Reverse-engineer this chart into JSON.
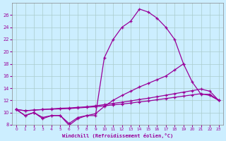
{
  "xlabel": "Windchill (Refroidissement éolien,°C)",
  "x": [
    0,
    1,
    2,
    3,
    4,
    5,
    6,
    7,
    8,
    9,
    10,
    11,
    12,
    13,
    14,
    15,
    16,
    17,
    18,
    19,
    20,
    21,
    22,
    23
  ],
  "line1_y": [
    10.5,
    9.5,
    10.0,
    9.0,
    9.5,
    9.5,
    7.9,
    9.0,
    9.5,
    9.5,
    19.0,
    22.0,
    24.0,
    25.0,
    27.0,
    26.5,
    25.5,
    24.0,
    22.0,
    18.0,
    null,
    null,
    null,
    null
  ],
  "line2_y": [
    10.5,
    9.5,
    10.0,
    9.2,
    9.5,
    9.5,
    8.2,
    9.2,
    9.5,
    9.8,
    11.0,
    12.0,
    12.8,
    13.5,
    14.2,
    14.8,
    15.4,
    16.0,
    17.0,
    18.0,
    15.0,
    13.0,
    13.0,
    12.0
  ],
  "line3_y": [
    10.5,
    10.3,
    10.4,
    10.5,
    10.55,
    10.6,
    10.65,
    10.75,
    10.85,
    10.95,
    11.1,
    11.25,
    11.4,
    11.55,
    11.75,
    11.9,
    12.1,
    12.3,
    12.5,
    12.7,
    12.9,
    13.1,
    12.8,
    12.0
  ],
  "line4_y": [
    10.5,
    10.3,
    10.4,
    10.5,
    10.6,
    10.7,
    10.75,
    10.85,
    10.95,
    11.1,
    11.3,
    11.5,
    11.7,
    11.9,
    12.15,
    12.35,
    12.6,
    12.85,
    13.1,
    13.35,
    13.6,
    13.85,
    13.5,
    12.0
  ],
  "color": "#990099",
  "bg_color": "#cceeff",
  "grid_color": "#aacccc",
  "ylim": [
    8,
    28
  ],
  "yticks": [
    8,
    10,
    12,
    14,
    16,
    18,
    20,
    22,
    24,
    26
  ],
  "xlim": [
    -0.5,
    23.5
  ],
  "xticks": [
    0,
    1,
    2,
    3,
    4,
    5,
    6,
    7,
    8,
    9,
    10,
    11,
    12,
    13,
    14,
    15,
    16,
    17,
    18,
    19,
    20,
    21,
    22,
    23
  ]
}
